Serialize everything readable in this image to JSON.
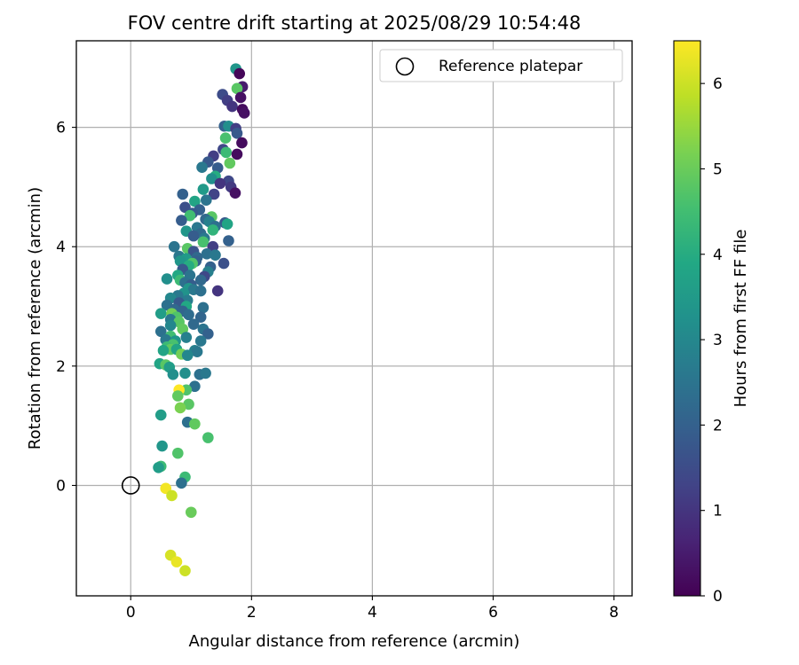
{
  "chart_data": {
    "type": "scatter",
    "title": "FOV centre drift starting at 2025/08/29 10:54:48",
    "xlabel": "Angular distance from reference (arcmin)",
    "ylabel": "Rotation from reference (arcmin)",
    "xlim": [
      -0.9,
      8.3
    ],
    "ylim": [
      -1.85,
      7.45
    ],
    "x_ticks": [
      0,
      2,
      4,
      6,
      8
    ],
    "y_ticks": [
      0,
      2,
      4,
      6
    ],
    "grid": true,
    "legend": {
      "position": "top-right",
      "entries": [
        "Reference platepar"
      ]
    },
    "reference_point": {
      "x": 0,
      "y": 0
    },
    "colorbar": {
      "label": "Hours from first FF file",
      "colormap": "viridis",
      "range": [
        0,
        6.5
      ],
      "ticks": [
        0,
        1,
        2,
        3,
        4,
        5,
        6
      ]
    },
    "points": [
      {
        "x": 1.74,
        "y": 6.98,
        "c": 3.4
      },
      {
        "x": 1.8,
        "y": 6.9,
        "c": 0.1
      },
      {
        "x": 1.85,
        "y": 6.68,
        "c": 0.5
      },
      {
        "x": 1.76,
        "y": 6.65,
        "c": 4.8
      },
      {
        "x": 1.52,
        "y": 6.55,
        "c": 1.5
      },
      {
        "x": 1.6,
        "y": 6.45,
        "c": 1.2
      },
      {
        "x": 1.82,
        "y": 6.5,
        "c": 0.3
      },
      {
        "x": 1.68,
        "y": 6.35,
        "c": 1.0
      },
      {
        "x": 1.85,
        "y": 6.3,
        "c": 0.2
      },
      {
        "x": 1.88,
        "y": 6.24,
        "c": 0.3
      },
      {
        "x": 1.55,
        "y": 6.02,
        "c": 2.0
      },
      {
        "x": 1.62,
        "y": 6.02,
        "c": 3.2
      },
      {
        "x": 1.74,
        "y": 5.98,
        "c": 1.2
      },
      {
        "x": 1.76,
        "y": 5.9,
        "c": 1.8
      },
      {
        "x": 1.57,
        "y": 5.82,
        "c": 4.6
      },
      {
        "x": 1.84,
        "y": 5.74,
        "c": 0.2
      },
      {
        "x": 1.53,
        "y": 5.63,
        "c": 1.4
      },
      {
        "x": 1.58,
        "y": 5.58,
        "c": 4.4
      },
      {
        "x": 1.76,
        "y": 5.55,
        "c": 0.2
      },
      {
        "x": 1.37,
        "y": 5.52,
        "c": 1.2
      },
      {
        "x": 1.28,
        "y": 5.42,
        "c": 1.8
      },
      {
        "x": 1.64,
        "y": 5.4,
        "c": 4.9
      },
      {
        "x": 1.18,
        "y": 5.33,
        "c": 2.6
      },
      {
        "x": 1.44,
        "y": 5.32,
        "c": 1.9
      },
      {
        "x": 1.4,
        "y": 5.18,
        "c": 4.0
      },
      {
        "x": 1.34,
        "y": 5.14,
        "c": 3.2
      },
      {
        "x": 1.62,
        "y": 5.1,
        "c": 1.4
      },
      {
        "x": 1.48,
        "y": 5.06,
        "c": 1.0
      },
      {
        "x": 1.66,
        "y": 5.0,
        "c": 1.1
      },
      {
        "x": 1.2,
        "y": 4.96,
        "c": 3.5
      },
      {
        "x": 1.73,
        "y": 4.9,
        "c": 0.3
      },
      {
        "x": 0.86,
        "y": 4.88,
        "c": 2.0
      },
      {
        "x": 1.38,
        "y": 4.88,
        "c": 1.3
      },
      {
        "x": 1.25,
        "y": 4.78,
        "c": 2.5
      },
      {
        "x": 1.06,
        "y": 4.76,
        "c": 3.8
      },
      {
        "x": 0.9,
        "y": 4.66,
        "c": 1.6
      },
      {
        "x": 1.14,
        "y": 4.62,
        "c": 2.0
      },
      {
        "x": 1.02,
        "y": 4.56,
        "c": 1.8
      },
      {
        "x": 0.98,
        "y": 4.52,
        "c": 4.5
      },
      {
        "x": 1.34,
        "y": 4.5,
        "c": 4.8
      },
      {
        "x": 1.24,
        "y": 4.46,
        "c": 2.2
      },
      {
        "x": 0.84,
        "y": 4.44,
        "c": 1.9
      },
      {
        "x": 1.3,
        "y": 4.42,
        "c": 2.8
      },
      {
        "x": 1.56,
        "y": 4.4,
        "c": 1.8
      },
      {
        "x": 1.6,
        "y": 4.38,
        "c": 3.8
      },
      {
        "x": 1.4,
        "y": 4.34,
        "c": 2.4
      },
      {
        "x": 1.1,
        "y": 4.32,
        "c": 2.6
      },
      {
        "x": 1.36,
        "y": 4.28,
        "c": 4.2
      },
      {
        "x": 0.92,
        "y": 4.26,
        "c": 3.4
      },
      {
        "x": 1.16,
        "y": 4.22,
        "c": 2.2
      },
      {
        "x": 1.04,
        "y": 4.18,
        "c": 1.9
      },
      {
        "x": 1.22,
        "y": 4.14,
        "c": 2.6
      },
      {
        "x": 1.62,
        "y": 4.1,
        "c": 2.0
      },
      {
        "x": 1.2,
        "y": 4.08,
        "c": 4.6
      },
      {
        "x": 0.72,
        "y": 4.0,
        "c": 2.5
      },
      {
        "x": 1.36,
        "y": 4.0,
        "c": 1.2
      },
      {
        "x": 0.94,
        "y": 3.97,
        "c": 4.8
      },
      {
        "x": 1.04,
        "y": 3.92,
        "c": 1.7
      },
      {
        "x": 1.26,
        "y": 3.88,
        "c": 2.4
      },
      {
        "x": 0.8,
        "y": 3.84,
        "c": 2.6
      },
      {
        "x": 1.4,
        "y": 3.86,
        "c": 2.6
      },
      {
        "x": 1.1,
        "y": 3.82,
        "c": 2.2
      },
      {
        "x": 0.92,
        "y": 3.8,
        "c": 3.5
      },
      {
        "x": 0.82,
        "y": 3.76,
        "c": 3.4
      },
      {
        "x": 1.08,
        "y": 3.76,
        "c": 2.0
      },
      {
        "x": 1.02,
        "y": 3.72,
        "c": 4.7
      },
      {
        "x": 0.96,
        "y": 3.68,
        "c": 4.0
      },
      {
        "x": 1.54,
        "y": 3.72,
        "c": 1.6
      },
      {
        "x": 1.32,
        "y": 3.66,
        "c": 2.0
      },
      {
        "x": 0.86,
        "y": 3.62,
        "c": 1.8
      },
      {
        "x": 1.28,
        "y": 3.58,
        "c": 2.8
      },
      {
        "x": 0.78,
        "y": 3.52,
        "c": 3.9
      },
      {
        "x": 0.98,
        "y": 3.52,
        "c": 2.5
      },
      {
        "x": 1.22,
        "y": 3.5,
        "c": 1.4
      },
      {
        "x": 0.6,
        "y": 3.46,
        "c": 3.2
      },
      {
        "x": 0.82,
        "y": 3.44,
        "c": 4.4
      },
      {
        "x": 1.16,
        "y": 3.44,
        "c": 2.2
      },
      {
        "x": 0.9,
        "y": 3.4,
        "c": 2.4
      },
      {
        "x": 1.0,
        "y": 3.36,
        "c": 1.9
      },
      {
        "x": 0.96,
        "y": 3.3,
        "c": 3.4
      },
      {
        "x": 1.04,
        "y": 3.28,
        "c": 2.6
      },
      {
        "x": 1.16,
        "y": 3.26,
        "c": 2.4
      },
      {
        "x": 1.44,
        "y": 3.26,
        "c": 1.0
      },
      {
        "x": 0.88,
        "y": 3.22,
        "c": 3.3
      },
      {
        "x": 0.78,
        "y": 3.18,
        "c": 2.6
      },
      {
        "x": 0.66,
        "y": 3.14,
        "c": 3.0
      },
      {
        "x": 0.94,
        "y": 3.1,
        "c": 2.7
      },
      {
        "x": 0.8,
        "y": 3.06,
        "c": 1.8
      },
      {
        "x": 0.6,
        "y": 3.02,
        "c": 2.4
      },
      {
        "x": 0.92,
        "y": 3.0,
        "c": 3.9
      },
      {
        "x": 1.2,
        "y": 2.98,
        "c": 2.4
      },
      {
        "x": 0.72,
        "y": 2.95,
        "c": 2.2
      },
      {
        "x": 0.86,
        "y": 2.92,
        "c": 2.1
      },
      {
        "x": 0.5,
        "y": 2.88,
        "c": 3.6
      },
      {
        "x": 0.68,
        "y": 2.88,
        "c": 5.1
      },
      {
        "x": 0.96,
        "y": 2.86,
        "c": 2.3
      },
      {
        "x": 0.76,
        "y": 2.82,
        "c": 4.7
      },
      {
        "x": 1.16,
        "y": 2.82,
        "c": 2.1
      },
      {
        "x": 0.66,
        "y": 2.78,
        "c": 2.6
      },
      {
        "x": 0.8,
        "y": 2.74,
        "c": 4.8
      },
      {
        "x": 1.04,
        "y": 2.7,
        "c": 2.2
      },
      {
        "x": 0.66,
        "y": 2.68,
        "c": 3.0
      },
      {
        "x": 0.86,
        "y": 2.62,
        "c": 4.9
      },
      {
        "x": 1.2,
        "y": 2.62,
        "c": 2.5
      },
      {
        "x": 0.5,
        "y": 2.58,
        "c": 2.4
      },
      {
        "x": 1.28,
        "y": 2.54,
        "c": 2.0
      },
      {
        "x": 0.66,
        "y": 2.5,
        "c": 4.5
      },
      {
        "x": 0.92,
        "y": 2.48,
        "c": 2.8
      },
      {
        "x": 0.58,
        "y": 2.44,
        "c": 2.6
      },
      {
        "x": 0.74,
        "y": 2.42,
        "c": 3.4
      },
      {
        "x": 1.16,
        "y": 2.42,
        "c": 2.6
      },
      {
        "x": 0.7,
        "y": 2.36,
        "c": 4.6
      },
      {
        "x": 0.6,
        "y": 2.32,
        "c": 4.4
      },
      {
        "x": 0.66,
        "y": 2.28,
        "c": 4.9
      },
      {
        "x": 0.76,
        "y": 2.28,
        "c": 3.8
      },
      {
        "x": 0.54,
        "y": 2.26,
        "c": 3.8
      },
      {
        "x": 1.06,
        "y": 2.26,
        "c": 2.8
      },
      {
        "x": 1.1,
        "y": 2.24,
        "c": 2.6
      },
      {
        "x": 0.84,
        "y": 2.2,
        "c": 5.1
      },
      {
        "x": 0.94,
        "y": 2.18,
        "c": 3.0
      },
      {
        "x": 0.48,
        "y": 2.04,
        "c": 3.8
      },
      {
        "x": 0.58,
        "y": 2.02,
        "c": 4.8
      },
      {
        "x": 0.64,
        "y": 1.98,
        "c": 3.6
      },
      {
        "x": 0.7,
        "y": 1.86,
        "c": 3.2
      },
      {
        "x": 0.9,
        "y": 1.88,
        "c": 3.2
      },
      {
        "x": 1.14,
        "y": 1.86,
        "c": 2.4
      },
      {
        "x": 1.24,
        "y": 1.88,
        "c": 2.6
      },
      {
        "x": 1.06,
        "y": 1.66,
        "c": 2.4
      },
      {
        "x": 0.92,
        "y": 1.6,
        "c": 4.7
      },
      {
        "x": 0.8,
        "y": 1.6,
        "c": 6.5
      },
      {
        "x": 0.78,
        "y": 1.5,
        "c": 4.9
      },
      {
        "x": 0.96,
        "y": 1.36,
        "c": 4.8
      },
      {
        "x": 0.82,
        "y": 1.3,
        "c": 5.2
      },
      {
        "x": 0.5,
        "y": 1.18,
        "c": 3.6
      },
      {
        "x": 0.94,
        "y": 1.06,
        "c": 2.4
      },
      {
        "x": 1.06,
        "y": 1.03,
        "c": 4.9
      },
      {
        "x": 1.28,
        "y": 0.8,
        "c": 4.6
      },
      {
        "x": 0.52,
        "y": 0.66,
        "c": 3.4
      },
      {
        "x": 0.78,
        "y": 0.54,
        "c": 4.7
      },
      {
        "x": 0.5,
        "y": 0.32,
        "c": 4.4
      },
      {
        "x": 0.46,
        "y": 0.3,
        "c": 3.6
      },
      {
        "x": 0.9,
        "y": 0.14,
        "c": 4.4
      },
      {
        "x": 0.84,
        "y": 0.04,
        "c": 2.4
      },
      {
        "x": 0.58,
        "y": -0.05,
        "c": 6.4
      },
      {
        "x": 0.68,
        "y": -0.17,
        "c": 6.0
      },
      {
        "x": 1.0,
        "y": -0.45,
        "c": 5.0
      },
      {
        "x": 0.66,
        "y": -1.17,
        "c": 6.1
      },
      {
        "x": 0.76,
        "y": -1.28,
        "c": 6.3
      },
      {
        "x": 0.9,
        "y": -1.43,
        "c": 6.0
      }
    ]
  }
}
